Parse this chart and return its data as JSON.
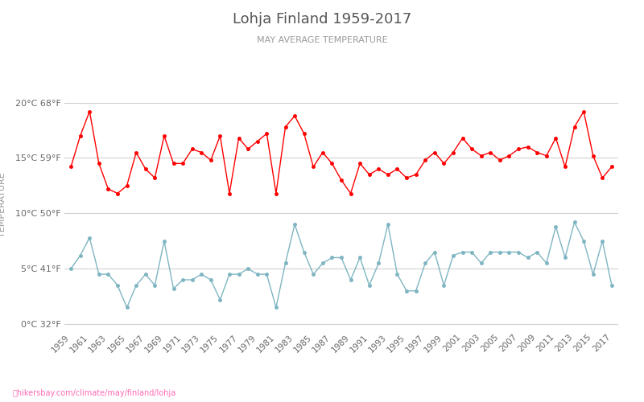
{
  "title": "Lohja Finland 1959-2017",
  "subtitle": "MAY AVERAGE TEMPERATURE",
  "ylabel": "TEMPERATURE",
  "watermark": "hikersbay.com/climate/may/finland/lohja",
  "years": [
    1959,
    1960,
    1961,
    1962,
    1963,
    1964,
    1965,
    1966,
    1967,
    1968,
    1969,
    1970,
    1971,
    1972,
    1973,
    1974,
    1975,
    1976,
    1977,
    1978,
    1979,
    1980,
    1981,
    1982,
    1983,
    1984,
    1985,
    1986,
    1987,
    1988,
    1989,
    1990,
    1991,
    1992,
    1993,
    1994,
    1995,
    1996,
    1997,
    1998,
    1999,
    2000,
    2001,
    2002,
    2003,
    2004,
    2005,
    2006,
    2007,
    2008,
    2009,
    2010,
    2011,
    2012,
    2013,
    2014,
    2015,
    2016,
    2017
  ],
  "day_temps": [
    14.2,
    17.0,
    19.2,
    14.5,
    12.2,
    11.8,
    12.5,
    15.5,
    14.0,
    13.2,
    17.0,
    14.5,
    14.5,
    15.8,
    15.5,
    14.8,
    17.0,
    11.8,
    16.8,
    15.8,
    16.5,
    17.2,
    11.8,
    17.8,
    18.8,
    17.2,
    14.2,
    15.5,
    14.5,
    13.0,
    11.8,
    14.5,
    13.5,
    14.0,
    13.5,
    14.0,
    13.2,
    13.5,
    14.8,
    15.5,
    14.5,
    15.5,
    16.8,
    15.8,
    15.2,
    15.5,
    14.8,
    15.2,
    15.8,
    16.0,
    15.5,
    15.2,
    16.8,
    14.2,
    17.8,
    19.2,
    15.2,
    13.2,
    14.2
  ],
  "night_temps": [
    5.0,
    6.2,
    7.8,
    4.5,
    4.5,
    3.5,
    1.5,
    3.5,
    4.5,
    3.5,
    7.5,
    3.2,
    4.0,
    4.0,
    4.5,
    4.0,
    2.2,
    4.5,
    4.5,
    5.0,
    4.5,
    4.5,
    1.5,
    5.5,
    9.0,
    6.5,
    4.5,
    5.5,
    6.0,
    6.0,
    4.0,
    6.0,
    3.5,
    5.5,
    9.0,
    4.5,
    3.0,
    3.0,
    5.5,
    6.5,
    3.5,
    6.2,
    6.5,
    6.5,
    5.5,
    6.5,
    6.5,
    6.5,
    6.5,
    6.0,
    6.5,
    5.5,
    8.8,
    6.0,
    9.2,
    7.5,
    4.5,
    7.5,
    3.5
  ],
  "day_color": "#ff0000",
  "night_color": "#7eb5c2",
  "background_color": "#ffffff",
  "grid_color": "#d0d0d0",
  "title_color": "#555555",
  "subtitle_color": "#999999",
  "ylabel_color": "#999999",
  "tick_color": "#666666",
  "yticks_c": [
    0,
    5,
    10,
    15,
    20
  ],
  "yticks_f": [
    32,
    41,
    50,
    59,
    68
  ],
  "ylim": [
    -0.5,
    22
  ],
  "watermark_color": "#ff69b4",
  "marker_size": 3.0,
  "xtick_years": [
    1959,
    1961,
    1963,
    1965,
    1967,
    1969,
    1971,
    1973,
    1975,
    1977,
    1979,
    1981,
    1983,
    1985,
    1987,
    1989,
    1991,
    1993,
    1995,
    1997,
    1999,
    2001,
    2003,
    2005,
    2007,
    2009,
    2011,
    2013,
    2015,
    2017
  ]
}
